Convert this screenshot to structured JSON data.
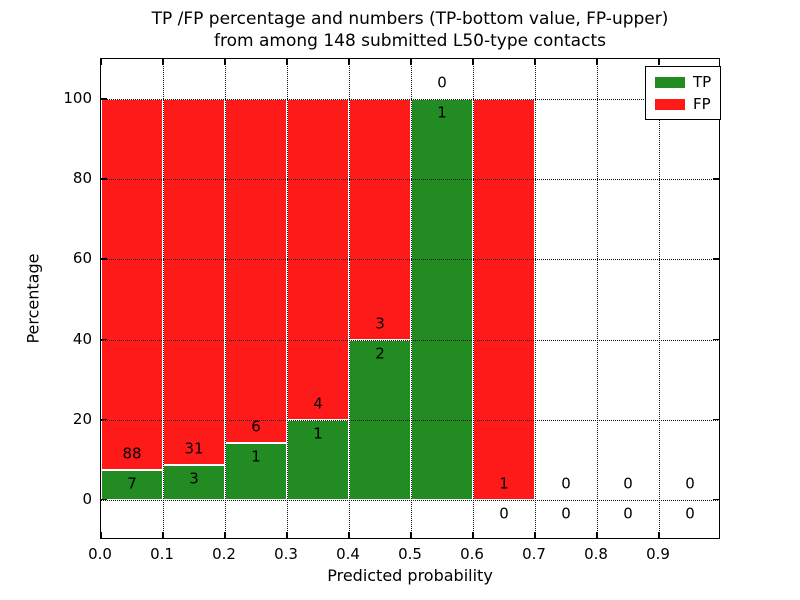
{
  "title": {
    "line1": "TP /FP percentage and numbers (TP-bottom value, FP-upper)",
    "line2": "from among 148 submitted L50-type contacts"
  },
  "colors": {
    "tp_green": "#228b22",
    "fp_red": "#ff1a1a",
    "grid": "#111111",
    "bar_edge": "#ffffff"
  },
  "legend": {
    "items": [
      {
        "label": "TP",
        "color": "#228b22"
      },
      {
        "label": "FP",
        "color": "#ff1a1a"
      }
    ]
  },
  "chart_data": {
    "type": "bar",
    "stacked": true,
    "title": "TP /FP percentage and numbers (TP-bottom value, FP-upper) from among 148 submitted L50-type contacts",
    "total_contacts": 148,
    "xlabel": "Predicted probability",
    "ylabel": "Percentage",
    "xlim": [
      0.0,
      1.0
    ],
    "ylim": [
      -10,
      110
    ],
    "grid": true,
    "legend_position": "upper right",
    "x_tick_values": [
      0.0,
      0.1,
      0.2,
      0.3,
      0.4,
      0.5,
      0.6,
      0.7,
      0.8,
      0.9
    ],
    "x_tick_labels": [
      "0.0",
      "0.1",
      "0.2",
      "0.3",
      "0.4",
      "0.5",
      "0.6",
      "0.7",
      "0.8",
      "0.9"
    ],
    "y_tick_values": [
      0,
      20,
      40,
      60,
      80,
      100
    ],
    "y_tick_labels": [
      "0",
      "20",
      "40",
      "60",
      "80",
      "100"
    ],
    "series": [
      {
        "name": "TP",
        "color": "#228b22"
      },
      {
        "name": "FP",
        "color": "#ff1a1a"
      }
    ],
    "bins": [
      {
        "range": [
          0.0,
          0.1
        ],
        "tp_count": 7,
        "fp_count": 88,
        "tp_pct": 7.4,
        "fp_pct": 92.6
      },
      {
        "range": [
          0.1,
          0.2
        ],
        "tp_count": 3,
        "fp_count": 31,
        "tp_pct": 8.8,
        "fp_pct": 91.2
      },
      {
        "range": [
          0.2,
          0.3
        ],
        "tp_count": 1,
        "fp_count": 6,
        "tp_pct": 14.3,
        "fp_pct": 85.7
      },
      {
        "range": [
          0.3,
          0.4
        ],
        "tp_count": 1,
        "fp_count": 4,
        "tp_pct": 20.0,
        "fp_pct": 80.0
      },
      {
        "range": [
          0.4,
          0.5
        ],
        "tp_count": 2,
        "fp_count": 3,
        "tp_pct": 40.0,
        "fp_pct": 60.0
      },
      {
        "range": [
          0.5,
          0.6
        ],
        "tp_count": 1,
        "fp_count": 0,
        "tp_pct": 100.0,
        "fp_pct": 0.0
      },
      {
        "range": [
          0.6,
          0.7
        ],
        "tp_count": 0,
        "fp_count": 1,
        "tp_pct": 0.0,
        "fp_pct": 100.0
      },
      {
        "range": [
          0.7,
          0.8
        ],
        "tp_count": 0,
        "fp_count": 0,
        "tp_pct": 0.0,
        "fp_pct": 0.0
      },
      {
        "range": [
          0.8,
          0.9
        ],
        "tp_count": 0,
        "fp_count": 0,
        "tp_pct": 0.0,
        "fp_pct": 0.0
      },
      {
        "range": [
          0.9,
          1.0
        ],
        "tp_count": 0,
        "fp_count": 0,
        "tp_pct": 0.0,
        "fp_pct": 0.0
      }
    ]
  }
}
